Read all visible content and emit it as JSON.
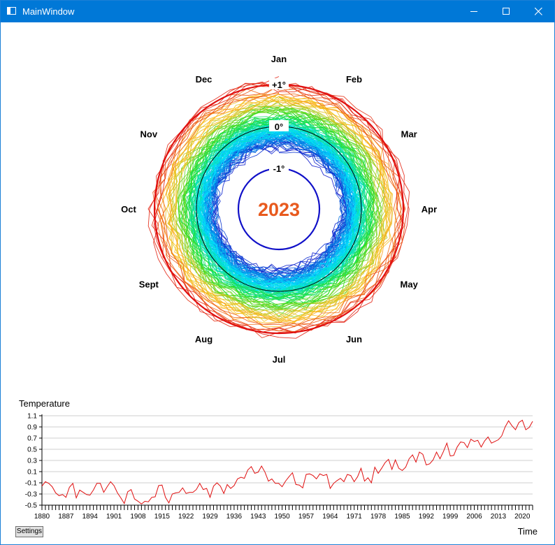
{
  "window": {
    "title": "MainWindow",
    "icon": "app-window-icon",
    "controls": [
      "minimize-icon",
      "maximize-icon",
      "close-icon"
    ]
  },
  "polar_chart": {
    "year_label": "2023",
    "year_color": "#e85a1e",
    "months": [
      "Jan",
      "Feb",
      "Mar",
      "Apr",
      "May",
      "Jun",
      "Jul",
      "Aug",
      "Sept",
      "Oct",
      "Nov",
      "Dec"
    ],
    "rings": [
      {
        "label": "+1°",
        "value": 1,
        "color": "#e01010"
      },
      {
        "label": "0°",
        "value": 0,
        "color": "#000000"
      },
      {
        "label": "-1°",
        "value": -1,
        "color": "#1010c8"
      }
    ],
    "color_scale": [
      "#1010c8",
      "#00e0ff",
      "#20e020",
      "#ffbf20",
      "#e01010"
    ]
  },
  "chart_data": {
    "type": "line",
    "ylabel": "Temperature",
    "xlabel": "Time",
    "ylim": [
      -0.5,
      1.1
    ],
    "xlim": [
      1880,
      2023
    ],
    "yticks": [
      "1.1",
      "0.9",
      "0.7",
      "0.5",
      "0.3",
      "0.1",
      "-0.1",
      "-0.3",
      "-0.5"
    ],
    "xticks": [
      "1880",
      "1887",
      "1894",
      "1901",
      "1908",
      "1915",
      "1922",
      "1929",
      "1936",
      "1943",
      "1950",
      "1957",
      "1964",
      "1971",
      "1978",
      "1985",
      "1992",
      "1999",
      "2006",
      "2013",
      "2020"
    ],
    "line_color": "#e01010",
    "x": [
      1880,
      1881,
      1882,
      1883,
      1884,
      1885,
      1886,
      1887,
      1888,
      1889,
      1890,
      1891,
      1892,
      1893,
      1894,
      1895,
      1896,
      1897,
      1898,
      1899,
      1900,
      1901,
      1902,
      1903,
      1904,
      1905,
      1906,
      1907,
      1908,
      1909,
      1910,
      1911,
      1912,
      1913,
      1914,
      1915,
      1916,
      1917,
      1918,
      1919,
      1920,
      1921,
      1922,
      1923,
      1924,
      1925,
      1926,
      1927,
      1928,
      1929,
      1930,
      1931,
      1932,
      1933,
      1934,
      1935,
      1936,
      1937,
      1938,
      1939,
      1940,
      1941,
      1942,
      1943,
      1944,
      1945,
      1946,
      1947,
      1948,
      1949,
      1950,
      1951,
      1952,
      1953,
      1954,
      1955,
      1956,
      1957,
      1958,
      1959,
      1960,
      1961,
      1962,
      1963,
      1964,
      1965,
      1966,
      1967,
      1968,
      1969,
      1970,
      1971,
      1972,
      1973,
      1974,
      1975,
      1976,
      1977,
      1978,
      1979,
      1980,
      1981,
      1982,
      1983,
      1984,
      1985,
      1986,
      1987,
      1988,
      1989,
      1990,
      1991,
      1992,
      1993,
      1994,
      1995,
      1996,
      1997,
      1998,
      1999,
      2000,
      2001,
      2002,
      2003,
      2004,
      2005,
      2006,
      2007,
      2008,
      2009,
      2010,
      2011,
      2012,
      2013,
      2014,
      2015,
      2016,
      2017,
      2018,
      2019,
      2020,
      2021,
      2022,
      2023
    ],
    "values": [
      -0.16,
      -0.08,
      -0.11,
      -0.17,
      -0.28,
      -0.33,
      -0.31,
      -0.36,
      -0.18,
      -0.11,
      -0.37,
      -0.23,
      -0.27,
      -0.31,
      -0.32,
      -0.23,
      -0.11,
      -0.11,
      -0.27,
      -0.17,
      -0.08,
      -0.15,
      -0.28,
      -0.37,
      -0.47,
      -0.26,
      -0.22,
      -0.39,
      -0.43,
      -0.48,
      -0.43,
      -0.44,
      -0.36,
      -0.35,
      -0.15,
      -0.14,
      -0.36,
      -0.46,
      -0.3,
      -0.28,
      -0.27,
      -0.19,
      -0.29,
      -0.27,
      -0.27,
      -0.22,
      -0.11,
      -0.22,
      -0.2,
      -0.36,
      -0.16,
      -0.1,
      -0.16,
      -0.29,
      -0.13,
      -0.2,
      -0.15,
      -0.03,
      0.0,
      -0.02,
      0.13,
      0.19,
      0.07,
      0.09,
      0.2,
      0.09,
      -0.07,
      -0.03,
      -0.11,
      -0.11,
      -0.17,
      -0.07,
      0.01,
      0.08,
      -0.13,
      -0.14,
      -0.19,
      0.05,
      0.06,
      0.03,
      -0.03,
      0.06,
      0.03,
      0.05,
      -0.2,
      -0.11,
      -0.06,
      -0.02,
      -0.08,
      0.05,
      0.03,
      -0.08,
      0.01,
      0.16,
      -0.07,
      -0.01,
      -0.1,
      0.18,
      0.07,
      0.16,
      0.26,
      0.32,
      0.14,
      0.31,
      0.16,
      0.12,
      0.18,
      0.33,
      0.4,
      0.27,
      0.45,
      0.41,
      0.22,
      0.24,
      0.31,
      0.45,
      0.33,
      0.46,
      0.61,
      0.38,
      0.39,
      0.54,
      0.63,
      0.62,
      0.53,
      0.68,
      0.64,
      0.66,
      0.54,
      0.65,
      0.72,
      0.61,
      0.64,
      0.67,
      0.74,
      0.9,
      1.01,
      0.92,
      0.85,
      0.98,
      1.02,
      0.85,
      0.89,
      1.0
    ]
  },
  "settings_button": {
    "label": "Settings"
  }
}
